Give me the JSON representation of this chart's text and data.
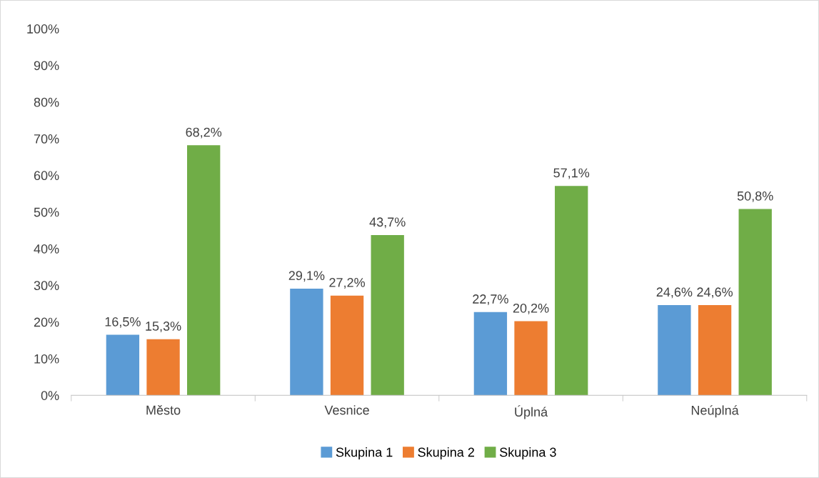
{
  "chart_data": {
    "type": "bar",
    "categories": [
      "Město",
      "Vesnice",
      "Úplná",
      "Neúplná"
    ],
    "series": [
      {
        "name": "Skupina 1",
        "color": "#5b9bd5",
        "values": [
          16.5,
          29.1,
          22.7,
          24.6
        ],
        "value_labels": [
          "16,5%",
          "29,1%",
          "22,7%",
          "24,6%"
        ]
      },
      {
        "name": "Skupina 2",
        "color": "#ed7d31",
        "values": [
          15.3,
          27.2,
          20.2,
          24.6
        ],
        "value_labels": [
          "15,3%",
          "27,2%",
          "20,2%",
          "24,6%"
        ]
      },
      {
        "name": "Skupina 3",
        "color": "#70ad47",
        "values": [
          68.2,
          43.7,
          57.1,
          50.8
        ],
        "value_labels": [
          "68,2%",
          "43,7%",
          "57,1%",
          "50,8%"
        ]
      }
    ],
    "ylim": [
      0,
      100
    ],
    "yticks": [
      {
        "value": 0,
        "label": "0%"
      },
      {
        "value": 10,
        "label": "10%"
      },
      {
        "value": 20,
        "label": "20%"
      },
      {
        "value": 30,
        "label": "30%"
      },
      {
        "value": 40,
        "label": "40%"
      },
      {
        "value": 50,
        "label": "50%"
      },
      {
        "value": 60,
        "label": "60%"
      },
      {
        "value": 70,
        "label": "70%"
      },
      {
        "value": 80,
        "label": "80%"
      },
      {
        "value": 90,
        "label": "90%"
      },
      {
        "value": 100,
        "label": "100%"
      }
    ],
    "grid": false,
    "legend": "bottom"
  }
}
